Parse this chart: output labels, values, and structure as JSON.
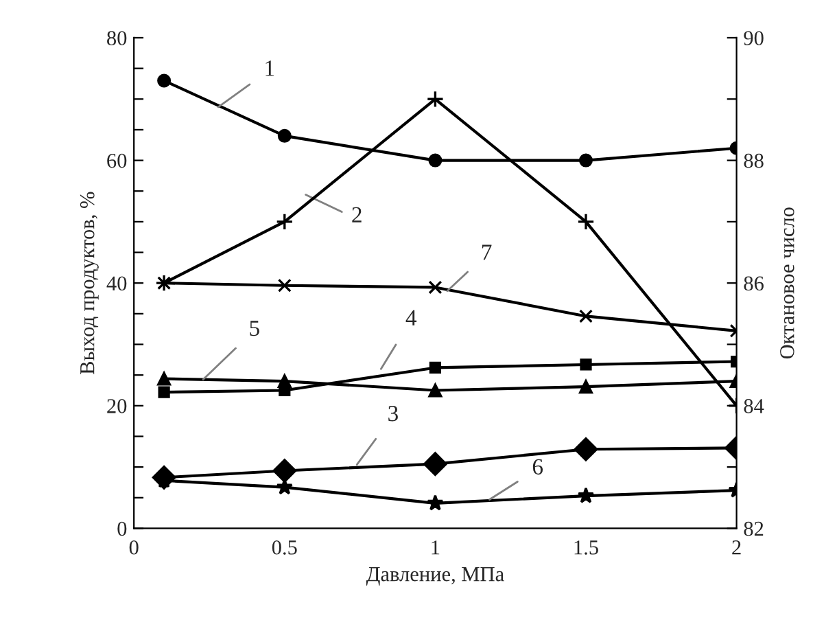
{
  "chart_data": {
    "type": "line",
    "xlabel": "Давление, МПа",
    "ylabel": "Выход продуктов, %",
    "y2label": "Октановое число",
    "x": [
      0.1,
      0.5,
      1,
      1.5,
      2
    ],
    "series": [
      {
        "color": "#000000",
        "marker": "circle",
        "values": [
          73,
          64,
          60,
          60,
          62
        ]
      },
      {
        "color": "#000000",
        "marker": "plus",
        "axis": "y2",
        "values": [
          86,
          87,
          89,
          87,
          84
        ]
      },
      {
        "color": "#000000",
        "marker": "diamond",
        "values": [
          8.3,
          9.4,
          10.5,
          12.9,
          13.1
        ]
      },
      {
        "color": "#000000",
        "marker": "square",
        "values": [
          22.2,
          22.5,
          26.2,
          26.7,
          27.2
        ]
      },
      {
        "color": "#000000",
        "marker": "triangle",
        "values": [
          24.4,
          24,
          22.5,
          23.1,
          24
        ]
      },
      {
        "color": "#000000",
        "marker": "star",
        "values": [
          7.8,
          6.7,
          4.1,
          5.3,
          6.2
        ]
      },
      {
        "color": "#000000",
        "marker": "cross",
        "values": [
          40,
          39.6,
          39.3,
          34.6,
          32.2
        ]
      }
    ],
    "annotations": [
      {
        "text": "1",
        "x": 0.28,
        "y": 68.7
      },
      "2",
      {
        "text": "3",
        "x": 0.74,
        "y": 10.4
      },
      {
        "text": "4",
        "x": 0.82,
        "y": 26
      },
      {
        "text": "5",
        "x": 0.23,
        "y": 24.3
      },
      {
        "text": "6",
        "x": 1.18,
        "y": 4.7
      },
      {
        "text": "7",
        "x": 1.04,
        "y": 38.7
      }
    ],
    "xlim": [
      0,
      2
    ],
    "xticks": [
      0,
      {
        "value": 0.5,
        "label": "0.5"
      },
      1,
      {
        "value": 1.5,
        "label": "1.5"
      },
      2
    ],
    "ylim": [
      0,
      80
    ],
    "yticks": [
      0,
      {
        "value": 5,
        "label": null
      },
      {
        "value": 10,
        "label": null
      },
      {
        "value": 15,
        "label": null
      },
      20,
      {
        "value": 25,
        "label": null
      },
      {
        "value": 30,
        "label": null
      },
      {
        "value": 35,
        "label": null
      },
      40,
      {
        "value": 45,
        "label": null
      },
      {
        "value": 50,
        "label": null
      },
      {
        "value": 55,
        "label": null
      },
      60,
      {
        "value": 65,
        "label": null
      },
      {
        "value": 70,
        "label": null
      },
      {
        "value": 75,
        "label": null
      },
      80
    ],
    "y2lim": [
      82,
      90
    ],
    "y2ticks": [
      82,
      {
        "value": 83,
        "label": null
      },
      84,
      {
        "value": 85,
        "label": null
      },
      86,
      {
        "value": 87,
        "label": null
      },
      88,
      {
        "value": 89,
        "label": null
      },
      90
    ],
    "grid": false,
    "legend": false
  }
}
